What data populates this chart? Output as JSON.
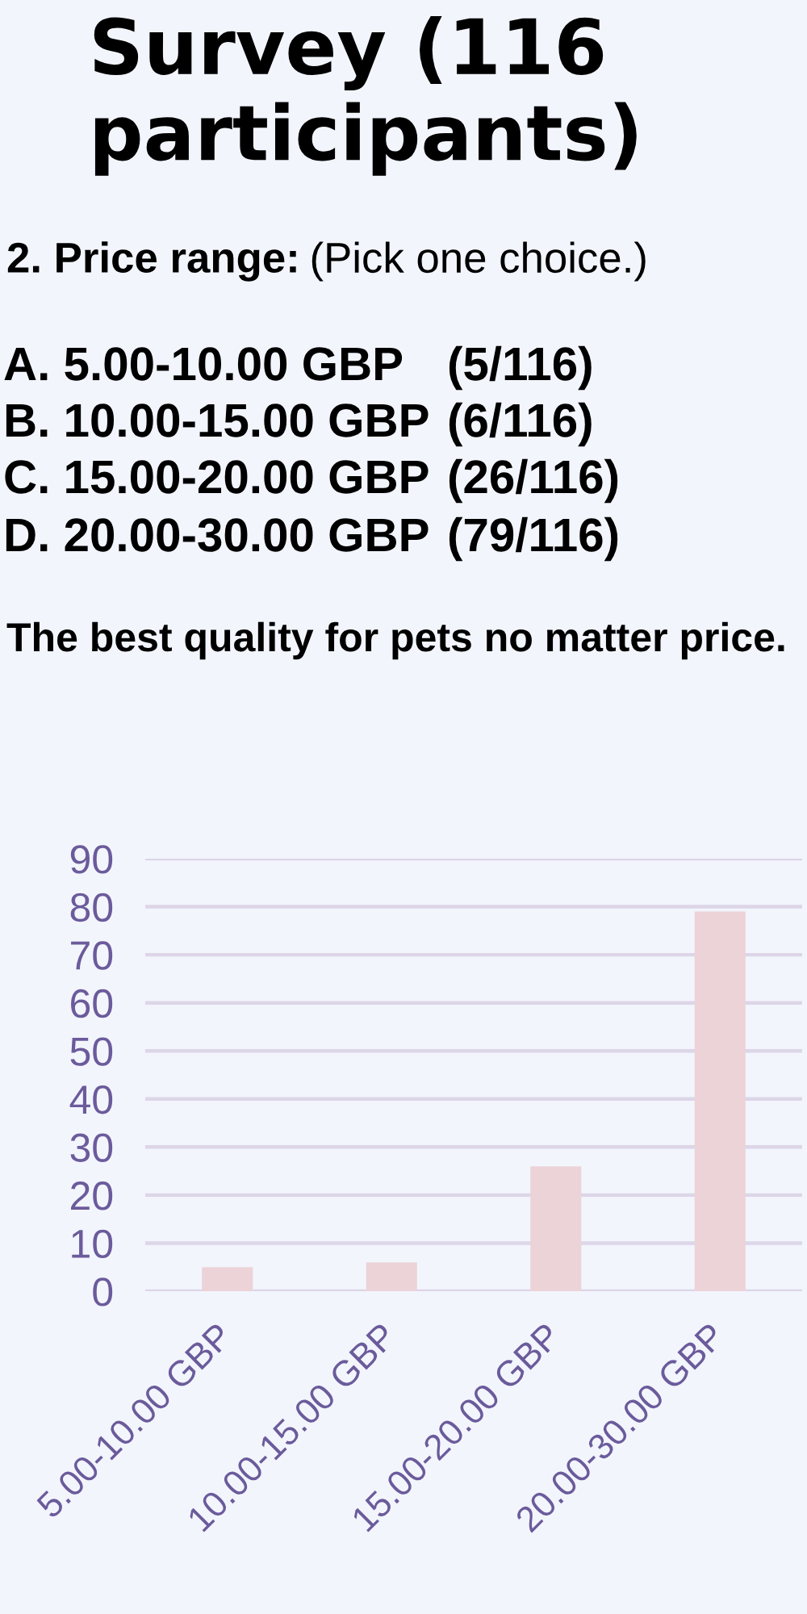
{
  "chart_data": {
    "type": "bar",
    "title": "Survey (116 participants)",
    "annotations": [
      "2. Price range:",
      "(Pick one choice.)",
      "A. 5.00-10.00 GBP",
      "(5/116)",
      "B. 10.00-15.00 GBP",
      "(6/116)",
      "C. 15.00-20.00 GBP",
      "(26/116)",
      "D. 20.00-30.00 GBP",
      "(79/116)",
      "The best quality for pets no matter price."
    ],
    "categories": [
      "5.00-10.00 GBP",
      "10.00-15.00 GBP",
      "15.00-20.00 GBP",
      "20.00-30.00 GBP"
    ],
    "values": [
      5,
      6,
      26,
      79
    ],
    "color": "#ecd3d8",
    "ylim": [
      0,
      90
    ],
    "yticks": [
      0,
      10,
      20,
      30,
      40,
      50,
      60,
      70,
      80,
      90
    ],
    "grid": "y"
  }
}
